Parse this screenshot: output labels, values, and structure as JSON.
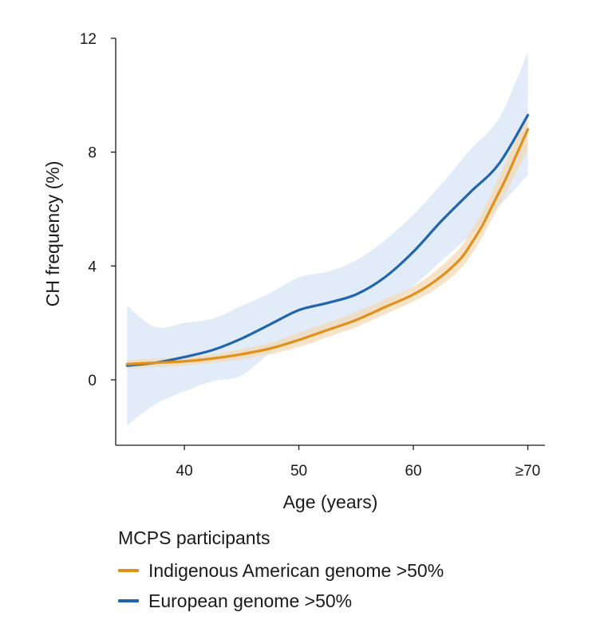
{
  "chart_data": {
    "type": "line",
    "title": "",
    "xlabel": "Age (years)",
    "ylabel": "CH frequency (%)",
    "xlim": [
      34,
      71.5
    ],
    "ylim": [
      -2.3,
      12
    ],
    "x_ticks": [
      40,
      50,
      60,
      70
    ],
    "x_tick_labels": [
      "40",
      "50",
      "60",
      "≥70"
    ],
    "y_ticks": [
      0,
      4,
      8,
      12
    ],
    "y_tick_labels": [
      "0",
      "4",
      "8",
      "12"
    ],
    "grid": false,
    "legend_title": "MCPS participants",
    "legend_position": "bottom-left",
    "series": [
      {
        "name": "Indigenous American genome >50%",
        "color": "#e0901c",
        "band_color": "#f3d9b0",
        "x": [
          35,
          37.5,
          40,
          42.5,
          45,
          47.5,
          50,
          52.5,
          55,
          57.5,
          60,
          62,
          64,
          65,
          66,
          67,
          68,
          69,
          70
        ],
        "y": [
          0.55,
          0.6,
          0.65,
          0.75,
          0.9,
          1.1,
          1.4,
          1.75,
          2.1,
          2.55,
          3.0,
          3.5,
          4.2,
          4.75,
          5.4,
          6.2,
          7.0,
          7.9,
          8.8
        ],
        "lower": [
          0.4,
          0.45,
          0.5,
          0.6,
          0.72,
          0.9,
          1.15,
          1.5,
          1.85,
          2.3,
          2.75,
          3.2,
          3.85,
          4.35,
          5.0,
          5.75,
          6.5,
          7.3,
          8.1
        ],
        "upper": [
          0.7,
          0.75,
          0.8,
          0.9,
          1.08,
          1.3,
          1.65,
          2.0,
          2.38,
          2.82,
          3.28,
          3.85,
          4.6,
          5.2,
          5.85,
          6.7,
          7.55,
          8.5,
          9.45
        ]
      },
      {
        "name": "European genome >50%",
        "color": "#2166ac",
        "band_color": "#dde8f7",
        "x": [
          35,
          37.5,
          40,
          42.5,
          45,
          47.5,
          50,
          52.5,
          55,
          57.5,
          60,
          62.5,
          65,
          67.5,
          70
        ],
        "y": [
          0.5,
          0.6,
          0.8,
          1.05,
          1.45,
          1.95,
          2.45,
          2.7,
          3.0,
          3.6,
          4.5,
          5.6,
          6.6,
          7.6,
          9.3
        ],
        "lower": [
          -1.6,
          -0.85,
          -0.4,
          -0.05,
          0.15,
          0.95,
          1.45,
          1.75,
          2.05,
          2.55,
          3.3,
          4.2,
          5.1,
          6.1,
          7.2
        ],
        "upper": [
          2.6,
          1.85,
          2.0,
          2.15,
          2.6,
          3.05,
          3.6,
          3.8,
          4.2,
          4.9,
          5.8,
          6.9,
          8.1,
          9.2,
          11.5
        ]
      }
    ]
  }
}
